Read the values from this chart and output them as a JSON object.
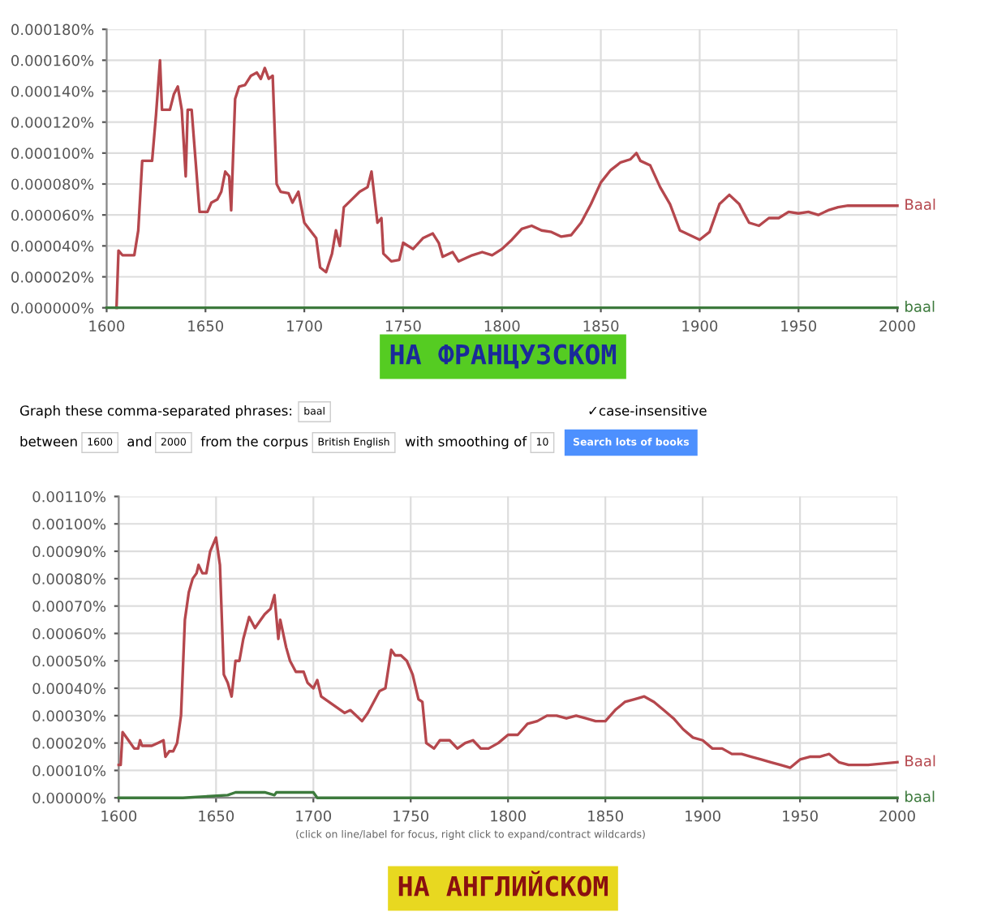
{
  "chart_data": [
    {
      "type": "line",
      "grid": true,
      "legend": false,
      "marker": "none",
      "line_style": "solid",
      "xlim": [
        1600,
        2000
      ],
      "xticks": [
        1600,
        1650,
        1700,
        1750,
        1800,
        1850,
        1900,
        1950,
        2000
      ],
      "ylim": [
        0,
        0.00018
      ],
      "yticks": [
        {
          "value": 0,
          "label": "0.000000%"
        },
        {
          "value": 2e-05,
          "label": "0.000020%"
        },
        {
          "value": 4e-05,
          "label": "0.000040%"
        },
        {
          "value": 6e-05,
          "label": "0.000060%"
        },
        {
          "value": 8e-05,
          "label": "0.000080%"
        },
        {
          "value": 0.0001,
          "label": "0.000100%"
        },
        {
          "value": 0.00012,
          "label": "0.000120%"
        },
        {
          "value": 0.00014,
          "label": "0.000140%"
        },
        {
          "value": 0.00016,
          "label": "0.000160%"
        },
        {
          "value": 0.00018,
          "label": "0.000180%"
        }
      ],
      "annotations": [
        "НА ФРАНЦУЗСКОМ"
      ],
      "series": [
        {
          "name": "Baal",
          "color": "#b5474d",
          "x": [
            1605,
            1606,
            1608,
            1614,
            1616,
            1618,
            1623,
            1625,
            1627,
            1628,
            1632,
            1634,
            1636,
            1638,
            1640,
            1641,
            1643,
            1645,
            1647,
            1651,
            1653,
            1656,
            1658,
            1660,
            1662,
            1663,
            1665,
            1667,
            1670,
            1673,
            1676,
            1678,
            1680,
            1682,
            1684,
            1686,
            1688,
            1692,
            1694,
            1697,
            1700,
            1703,
            1706,
            1708,
            1711,
            1714,
            1716,
            1718,
            1720,
            1724,
            1728,
            1732,
            1734,
            1737,
            1739,
            1740,
            1744,
            1748,
            1750,
            1755,
            1760,
            1765,
            1768,
            1770,
            1775,
            1778,
            1785,
            1790,
            1795,
            1800,
            1805,
            1810,
            1815,
            1820,
            1825,
            1830,
            1835,
            1840,
            1845,
            1850,
            1855,
            1860,
            1865,
            1868,
            1870,
            1875,
            1880,
            1885,
            1890,
            1895,
            1900,
            1905,
            1910,
            1915,
            1920,
            1922,
            1925,
            1930,
            1935,
            1940,
            1945,
            1950,
            1955,
            1960,
            1965,
            1970,
            1975,
            2000
          ],
          "values": [
            0,
            3.7e-05,
            3.4e-05,
            3.4e-05,
            5e-05,
            9.5e-05,
            9.5e-05,
            0.000125,
            0.00016,
            0.000128,
            0.000128,
            0.000138,
            0.000143,
            0.000128,
            8.5e-05,
            0.000128,
            0.000128,
            9.5e-05,
            6.2e-05,
            6.2e-05,
            6.8e-05,
            7e-05,
            7.5e-05,
            8.8e-05,
            8.5e-05,
            6.3e-05,
            0.000135,
            0.000143,
            0.000144,
            0.00015,
            0.000152,
            0.000148,
            0.000155,
            0.000148,
            0.00015,
            8e-05,
            7.5e-05,
            7.4e-05,
            6.8e-05,
            7.5e-05,
            5.5e-05,
            5e-05,
            4.5e-05,
            2.6e-05,
            2.3e-05,
            3.5e-05,
            5e-05,
            4e-05,
            6.5e-05,
            7e-05,
            7.5e-05,
            7.8e-05,
            8.8e-05,
            5.5e-05,
            5.8e-05,
            3.5e-05,
            3e-05,
            3.1e-05,
            4.2e-05,
            3.8e-05,
            4.5e-05,
            4.8e-05,
            4.2e-05,
            3.3e-05,
            3.6e-05,
            3e-05,
            3.4e-05,
            3.6e-05,
            3.4e-05,
            3.8e-05,
            4.4e-05,
            5.1e-05,
            5.3e-05,
            5e-05,
            4.9e-05,
            4.6e-05,
            4.7e-05,
            5.5e-05,
            6.7e-05,
            8.1e-05,
            8.9e-05,
            9.4e-05,
            9.6e-05,
            0.0001,
            9.5e-05,
            9.2e-05,
            7.8e-05,
            6.7e-05,
            5e-05,
            4.7e-05,
            4.4e-05,
            4.9e-05,
            6.7e-05,
            7.3e-05,
            6.7e-05,
            6.2e-05,
            5.5e-05,
            5.3e-05,
            5.8e-05,
            5.8e-05,
            6.2e-05,
            6.1e-05,
            6.2e-05,
            6e-05,
            6.3e-05,
            6.5e-05,
            6.6e-05,
            6.6e-05
          ]
        },
        {
          "name": "baal",
          "color": "#3d7a3d",
          "x": [
            1600,
            1730,
            1760,
            1790,
            1800,
            1900,
            2000
          ],
          "values": [
            0,
            0,
            0,
            0,
            0,
            0,
            0
          ]
        }
      ]
    },
    {
      "type": "line",
      "grid": true,
      "legend": false,
      "marker": "none",
      "line_style": "solid",
      "xlim": [
        1600,
        2000
      ],
      "xticks": [
        1600,
        1650,
        1700,
        1750,
        1800,
        1850,
        1900,
        1950,
        2000
      ],
      "ylim": [
        0,
        0.0011
      ],
      "yticks": [
        {
          "value": 0,
          "label": "0.00000%"
        },
        {
          "value": 0.0001,
          "label": "0.00010%"
        },
        {
          "value": 0.0002,
          "label": "0.00020%"
        },
        {
          "value": 0.0003,
          "label": "0.00030%"
        },
        {
          "value": 0.0004,
          "label": "0.00040%"
        },
        {
          "value": 0.0005,
          "label": "0.00050%"
        },
        {
          "value": 0.0006,
          "label": "0.00060%"
        },
        {
          "value": 0.0007,
          "label": "0.00070%"
        },
        {
          "value": 0.0008,
          "label": "0.00080%"
        },
        {
          "value": 0.0009,
          "label": "0.00090%"
        },
        {
          "value": 0.001,
          "label": "0.00100%"
        },
        {
          "value": 0.0011,
          "label": "0.00110%"
        }
      ],
      "annotations": [
        "Graph these comma-separated phrases:",
        "baal",
        "✓case-insensitive",
        "between",
        "1600",
        "and",
        "2000",
        "from the corpus",
        "British English",
        "with smoothing of",
        "10",
        "Search lots of books",
        "(click on line/label for focus, right click to expand/contract wildcards)",
        "НА АНГЛИЙСКОМ"
      ],
      "series": [
        {
          "name": "Baal",
          "color": "#b5474d",
          "x": [
            1600,
            1601,
            1602,
            1605,
            1608,
            1610,
            1611,
            1612,
            1617,
            1620,
            1623,
            1624,
            1626,
            1628,
            1630,
            1632,
            1634,
            1636,
            1638,
            1640,
            1641,
            1643,
            1645,
            1647,
            1650,
            1652,
            1654,
            1656,
            1658,
            1660,
            1662,
            1664,
            1667,
            1670,
            1673,
            1675,
            1678,
            1680,
            1682,
            1683,
            1686,
            1688,
            1691,
            1695,
            1697,
            1700,
            1702,
            1704,
            1708,
            1712,
            1716,
            1719,
            1722,
            1725,
            1728,
            1731,
            1734,
            1737,
            1740,
            1742,
            1745,
            1748,
            1751,
            1754,
            1756,
            1758,
            1762,
            1765,
            1770,
            1774,
            1778,
            1782,
            1786,
            1790,
            1795,
            1800,
            1805,
            1810,
            1815,
            1820,
            1825,
            1830,
            1835,
            1840,
            1845,
            1850,
            1855,
            1860,
            1865,
            1870,
            1875,
            1880,
            1885,
            1890,
            1895,
            1900,
            1905,
            1910,
            1915,
            1920,
            1925,
            1930,
            1935,
            1940,
            1945,
            1950,
            1955,
            1960,
            1965,
            1970,
            1975,
            1985,
            2000
          ],
          "values": [
            0.00012,
            0.00012,
            0.00024,
            0.00021,
            0.00018,
            0.00018,
            0.00021,
            0.00019,
            0.00019,
            0.0002,
            0.00021,
            0.00015,
            0.00017,
            0.00017,
            0.0002,
            0.0003,
            0.00065,
            0.00075,
            0.0008,
            0.00082,
            0.00085,
            0.00082,
            0.00082,
            0.0009,
            0.00095,
            0.00085,
            0.00045,
            0.00042,
            0.00037,
            0.0005,
            0.0005,
            0.00058,
            0.00066,
            0.00062,
            0.00065,
            0.00067,
            0.00069,
            0.00074,
            0.00058,
            0.00065,
            0.00055,
            0.0005,
            0.00046,
            0.00046,
            0.00042,
            0.0004,
            0.00043,
            0.00037,
            0.00035,
            0.00033,
            0.00031,
            0.00032,
            0.0003,
            0.00028,
            0.00031,
            0.00035,
            0.00039,
            0.0004,
            0.00054,
            0.00052,
            0.00052,
            0.0005,
            0.00045,
            0.00036,
            0.00035,
            0.0002,
            0.00018,
            0.00021,
            0.00021,
            0.00018,
            0.0002,
            0.00021,
            0.00018,
            0.00018,
            0.0002,
            0.00023,
            0.00023,
            0.00027,
            0.00028,
            0.0003,
            0.0003,
            0.00029,
            0.0003,
            0.00029,
            0.00028,
            0.00028,
            0.00032,
            0.00035,
            0.00036,
            0.00037,
            0.00035,
            0.00032,
            0.00029,
            0.00025,
            0.00022,
            0.00021,
            0.00018,
            0.00018,
            0.00016,
            0.00016,
            0.00015,
            0.00014,
            0.00013,
            0.00012,
            0.00011,
            0.00014,
            0.00015,
            0.00015,
            0.00016,
            0.00013,
            0.00012,
            0.00012,
            0.00013
          ]
        },
        {
          "name": "baal",
          "color": "#3d7a3d",
          "x": [
            1600,
            1633,
            1656,
            1660,
            1675,
            1680,
            1681,
            1700,
            1702,
            1750,
            1800,
            1900,
            2000
          ],
          "values": [
            0,
            0,
            1e-05,
            2e-05,
            2e-05,
            1e-05,
            2e-05,
            2e-05,
            0,
            0,
            0,
            0,
            0
          ]
        }
      ]
    }
  ]
}
